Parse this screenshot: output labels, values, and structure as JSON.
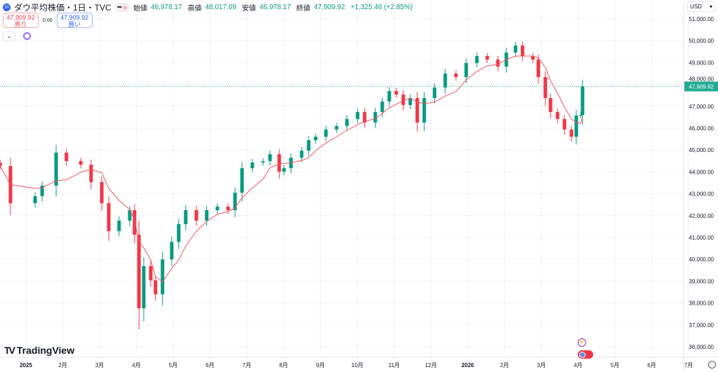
{
  "header": {
    "badge": "30",
    "title": "ダウ平均株価・1日・TVC",
    "pill_a": "━",
    "pill_b": "≈",
    "ohlc": [
      {
        "label": "始値",
        "value": "46,978.17"
      },
      {
        "label": "高値",
        "value": "48,017.09"
      },
      {
        "label": "安値",
        "value": "46,978.17"
      },
      {
        "label": "終値",
        "value": "47,909.92"
      }
    ],
    "change": "+1,325.46 (+2.85%)"
  },
  "trade": {
    "sell_price": "47,909.92",
    "sell_label": "売り",
    "spread": "0.00",
    "buy_price": "47,909.92",
    "buy_label": "買い"
  },
  "currency": "USD",
  "brand": "TradingView",
  "colors": {
    "up": "#089981",
    "down": "#f23645",
    "ma": "#f7525f",
    "grid": "#f0f3fa",
    "last": "#22ab94"
  },
  "chart_data": {
    "type": "candlestick",
    "title": "ダウ平均株価・1日・TVC",
    "ylabel": "USD",
    "ylim": [
      35700,
      51600
    ],
    "y_ticks": [
      36000,
      37000,
      38000,
      39000,
      40000,
      41000,
      42000,
      43000,
      44000,
      45000,
      46000,
      47000,
      48000,
      49000,
      50000,
      51000
    ],
    "y_tick_labels": [
      "36,000.00",
      "37,000.00",
      "38,000.00",
      "39,000.00",
      "40,000.00",
      "41,000.00",
      "42,000.00",
      "43,000.00",
      "44,000.00",
      "45,000.00",
      "46,000.00",
      "47,000.00",
      "48,000.00",
      "49,000.00",
      "50,000.00",
      "51,000.00"
    ],
    "x_unit": "months since 2025-01",
    "xlim": [
      -0.71,
      17.9
    ],
    "x_ticks": [
      0,
      1,
      2,
      3,
      4,
      5,
      6,
      7,
      8,
      9,
      10,
      11,
      12,
      13,
      14,
      15,
      16,
      17,
      18
    ],
    "x_tick_labels": [
      "2025",
      "2月",
      "3月",
      "4月",
      "5月",
      "6月",
      "7月",
      "8月",
      "9月",
      "10月",
      "11月",
      "12月",
      "2026",
      "2月",
      "3月",
      "4月",
      "5月",
      "6月",
      "7月"
    ],
    "series": [
      {
        "name": "close",
        "points": [
          [
            -0.7,
            44270
          ],
          [
            -0.42,
            42570
          ],
          [
            0.25,
            42890
          ],
          [
            0.44,
            43370
          ],
          [
            0.82,
            44880
          ],
          [
            1.1,
            44500
          ],
          [
            1.49,
            44330
          ],
          [
            1.77,
            43530
          ],
          [
            2.06,
            42570
          ],
          [
            2.25,
            41290
          ],
          [
            2.53,
            41770
          ],
          [
            2.82,
            42250
          ],
          [
            2.95,
            41130
          ],
          [
            3.07,
            37760
          ],
          [
            3.2,
            39690
          ],
          [
            3.39,
            39040
          ],
          [
            3.52,
            38400
          ],
          [
            3.71,
            40000
          ],
          [
            3.96,
            40800
          ],
          [
            4.15,
            41610
          ],
          [
            4.34,
            42250
          ],
          [
            4.63,
            41770
          ],
          [
            4.91,
            42250
          ],
          [
            5.2,
            42410
          ],
          [
            5.49,
            42250
          ],
          [
            5.68,
            43050
          ],
          [
            5.87,
            44170
          ],
          [
            6.15,
            44430
          ],
          [
            6.44,
            44490
          ],
          [
            6.63,
            44810
          ],
          [
            6.88,
            44010
          ],
          [
            7.01,
            44170
          ],
          [
            7.2,
            44650
          ],
          [
            7.49,
            44970
          ],
          [
            7.68,
            45450
          ],
          [
            7.87,
            45610
          ],
          [
            8.15,
            45940
          ],
          [
            8.44,
            46100
          ],
          [
            8.72,
            46420
          ],
          [
            9.01,
            46740
          ],
          [
            9.2,
            46260
          ],
          [
            9.49,
            46740
          ],
          [
            9.68,
            47220
          ],
          [
            9.87,
            47700
          ],
          [
            10.06,
            47540
          ],
          [
            10.25,
            47060
          ],
          [
            10.44,
            47380
          ],
          [
            10.63,
            46260
          ],
          [
            10.82,
            47380
          ],
          [
            11.1,
            47860
          ],
          [
            11.39,
            48500
          ],
          [
            11.68,
            48340
          ],
          [
            11.96,
            48980
          ],
          [
            12.25,
            49300
          ],
          [
            12.53,
            49140
          ],
          [
            12.82,
            48820
          ],
          [
            13.05,
            49460
          ],
          [
            13.3,
            49780
          ],
          [
            13.49,
            49300
          ],
          [
            13.77,
            49140
          ],
          [
            13.92,
            48340
          ],
          [
            14.11,
            47380
          ],
          [
            14.25,
            46740
          ],
          [
            14.44,
            46420
          ],
          [
            14.63,
            45940
          ],
          [
            14.82,
            45610
          ],
          [
            14.95,
            46580
          ],
          [
            15.07,
            46600
          ],
          [
            15.12,
            47909.92
          ]
        ]
      },
      {
        "name": "moving_average",
        "period_points": 5
      }
    ],
    "last_price": 47909.92,
    "last_price_label": "47,909.92"
  }
}
